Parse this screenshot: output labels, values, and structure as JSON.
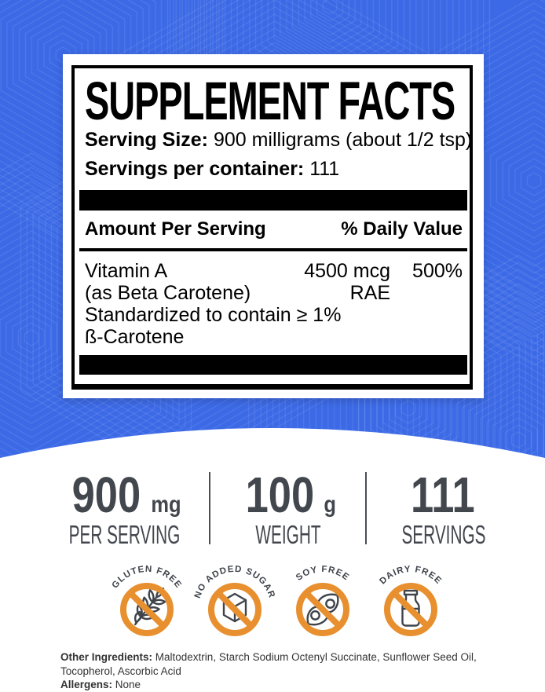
{
  "panel": {
    "title": "SUPPLEMENT FACTS",
    "serving_size_label": "Serving Size:",
    "serving_size_value": "900 milligrams (about 1/2 tsp)",
    "servings_label": "Servings per container:",
    "servings_value": "111",
    "col_amount_header": "Amount Per Serving",
    "col_dv_header": "% Daily Value",
    "nutrient": {
      "name": "Vitamin A",
      "name_detail": "(as Beta Carotene)",
      "amount": "4500 mcg",
      "amount_unit2": "RAE",
      "daily_value": "500%",
      "note_line1": "Standardized to contain ≥ 1%",
      "note_line2": "ß-Carotene"
    }
  },
  "stats": [
    {
      "value": "900",
      "unit": "mg",
      "label": "PER SERVING"
    },
    {
      "value": "100",
      "unit": "g",
      "label": "WEIGHT"
    },
    {
      "value": "111",
      "unit": "",
      "label": "SERVINGS"
    }
  ],
  "badges": [
    {
      "label": "GLUTEN FREE",
      "icon": "wheat-icon"
    },
    {
      "label": "NO ADDED SUGAR",
      "icon": "sugar-cube-icon"
    },
    {
      "label": "SOY FREE",
      "icon": "soybean-icon"
    },
    {
      "label": "DAIRY FREE",
      "icon": "milk-bottle-icon"
    }
  ],
  "footer": {
    "other_ingredients_label": "Other Ingredients:",
    "other_ingredients": "Maltodextrin, Starch Sodium Octenyl Succinate, Sunflower Seed Oil, Tocopherol, Ascorbic Acid",
    "allergens_label": "Allergens:",
    "allergens": "None"
  },
  "colors": {
    "background_blue": "#3C6AE6",
    "badge_orange": "#E8902F",
    "stat_gray": "#42464D",
    "panel_black": "#000000"
  }
}
